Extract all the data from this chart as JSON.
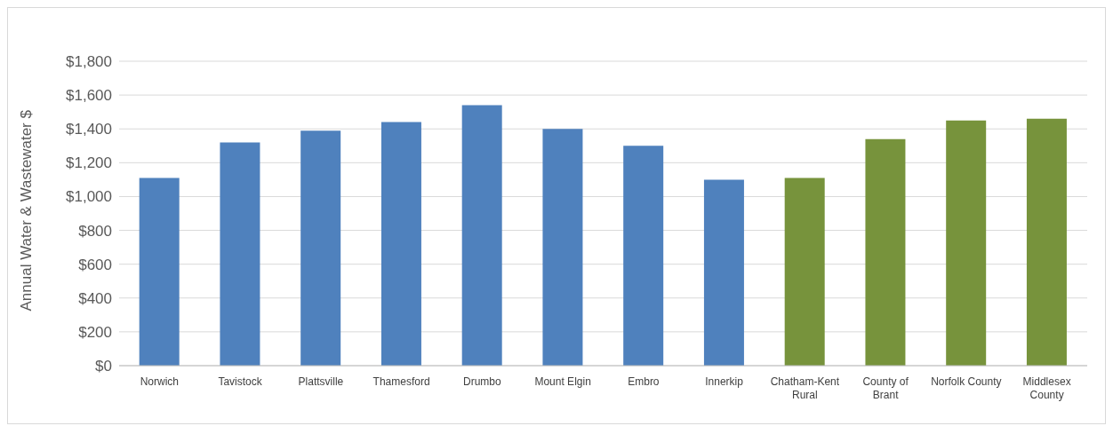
{
  "chart_data": {
    "type": "bar",
    "ylabel": "Annual Water & Wastewater $",
    "categories": [
      "Norwich",
      "Tavistock",
      "Plattsville",
      "Thamesford",
      "Drumbo",
      "Mount Elgin",
      "Embro",
      "Innerkip",
      "Chatham-Kent Rural",
      "County of Brant",
      "Norfolk County",
      "Middlesex County"
    ],
    "values": [
      1110,
      1320,
      1390,
      1440,
      1540,
      1400,
      1300,
      1100,
      1110,
      1340,
      1450,
      1460
    ],
    "colors": [
      "#4f81bd",
      "#4f81bd",
      "#4f81bd",
      "#4f81bd",
      "#4f81bd",
      "#4f81bd",
      "#4f81bd",
      "#4f81bd",
      "#77933c",
      "#77933c",
      "#77933c",
      "#77933c"
    ],
    "ylim": [
      0,
      1800
    ],
    "yticks": [
      {
        "value": 0,
        "label": "$0"
      },
      {
        "value": 200,
        "label": "$200"
      },
      {
        "value": 400,
        "label": "$400"
      },
      {
        "value": 600,
        "label": "$600"
      },
      {
        "value": 800,
        "label": "$800"
      },
      {
        "value": 1000,
        "label": "$1,000"
      },
      {
        "value": 1200,
        "label": "$1,200"
      },
      {
        "value": 1400,
        "label": "$1,400"
      },
      {
        "value": 1600,
        "label": "$1,600"
      },
      {
        "value": 1800,
        "label": "$1,800"
      }
    ],
    "grid": "y",
    "legend": false
  }
}
